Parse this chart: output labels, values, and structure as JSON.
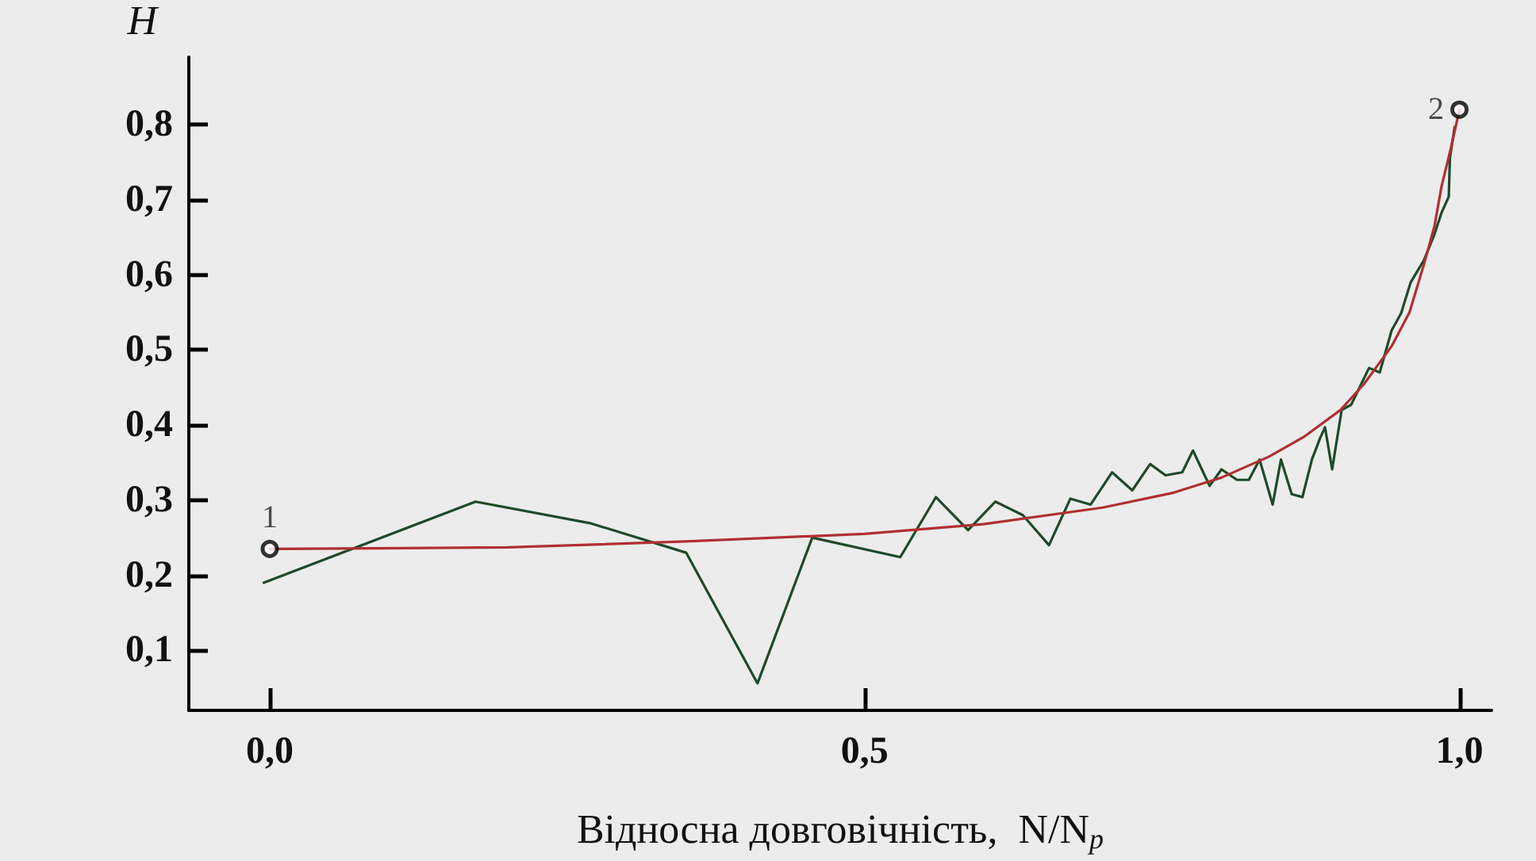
{
  "chart_data": {
    "type": "line",
    "xlabel": "Відносна довговічність,  N/N$_{p}$",
    "ylabel": "H",
    "xlim": [
      -0.068,
      1.027
    ],
    "ylim": [
      0.02,
      0.89
    ],
    "xticks": [
      {
        "value": 0,
        "label": "0,0"
      },
      {
        "value": 0.5,
        "label": "0,5"
      },
      {
        "value": 1,
        "label": "1,0"
      }
    ],
    "yticks": [
      {
        "value": 0.1,
        "label": "0,1"
      },
      {
        "value": 0.2,
        "label": "0,2"
      },
      {
        "value": 0.3,
        "label": "0,3"
      },
      {
        "value": 0.4,
        "label": "0,4"
      },
      {
        "value": 0.5,
        "label": "0,5"
      },
      {
        "value": 0.6,
        "label": "0,6"
      },
      {
        "value": 0.7,
        "label": "0,7"
      },
      {
        "value": 0.8,
        "label": "0,8"
      }
    ],
    "grid": false,
    "marker": "none",
    "line_style": "solid",
    "series": [
      {
        "color": "#1e4a2a",
        "x": [
          -0.005,
          0.173,
          0.27,
          0.35,
          0.41,
          0.456,
          0.53,
          0.56,
          0.587,
          0.61,
          0.633,
          0.655,
          0.673,
          0.69,
          0.708,
          0.725,
          0.74,
          0.753,
          0.767,
          0.776,
          0.79,
          0.8,
          0.813,
          0.823,
          0.832,
          0.843,
          0.85,
          0.859,
          0.868,
          0.876,
          0.883,
          0.887,
          0.893,
          0.901,
          0.909,
          0.924,
          0.933,
          0.943,
          0.951,
          0.959,
          0.97,
          0.979,
          0.985,
          0.991,
          0.992,
          0.996
        ],
        "values": [
          0.19,
          0.298,
          0.269,
          0.23,
          0.056,
          0.25,
          0.224,
          0.304,
          0.26,
          0.298,
          0.28,
          0.24,
          0.302,
          0.294,
          0.337,
          0.313,
          0.348,
          0.333,
          0.337,
          0.366,
          0.319,
          0.341,
          0.327,
          0.327,
          0.354,
          0.294,
          0.354,
          0.308,
          0.304,
          0.354,
          0.383,
          0.397,
          0.341,
          0.42,
          0.427,
          0.476,
          0.47,
          0.526,
          0.549,
          0.59,
          0.619,
          0.654,
          0.683,
          0.704,
          0.756,
          0.797
        ]
      },
      {
        "color": "#b03030",
        "x": [
          0,
          0.2,
          0.35,
          0.5,
          0.6,
          0.7,
          0.76,
          0.8,
          0.84,
          0.87,
          0.9,
          0.92,
          0.943,
          0.958,
          0.97,
          0.979,
          0.985,
          0.993,
          1.0
        ],
        "values": [
          0.235,
          0.237,
          0.245,
          0.255,
          0.268,
          0.29,
          0.31,
          0.33,
          0.358,
          0.385,
          0.42,
          0.455,
          0.505,
          0.55,
          0.613,
          0.665,
          0.718,
          0.77,
          0.82
        ]
      }
    ],
    "annotations": [
      {
        "text": "1",
        "x": 0,
        "y": 0.235
      },
      {
        "text": "2",
        "x": 1.0,
        "y": 0.82
      }
    ]
  }
}
